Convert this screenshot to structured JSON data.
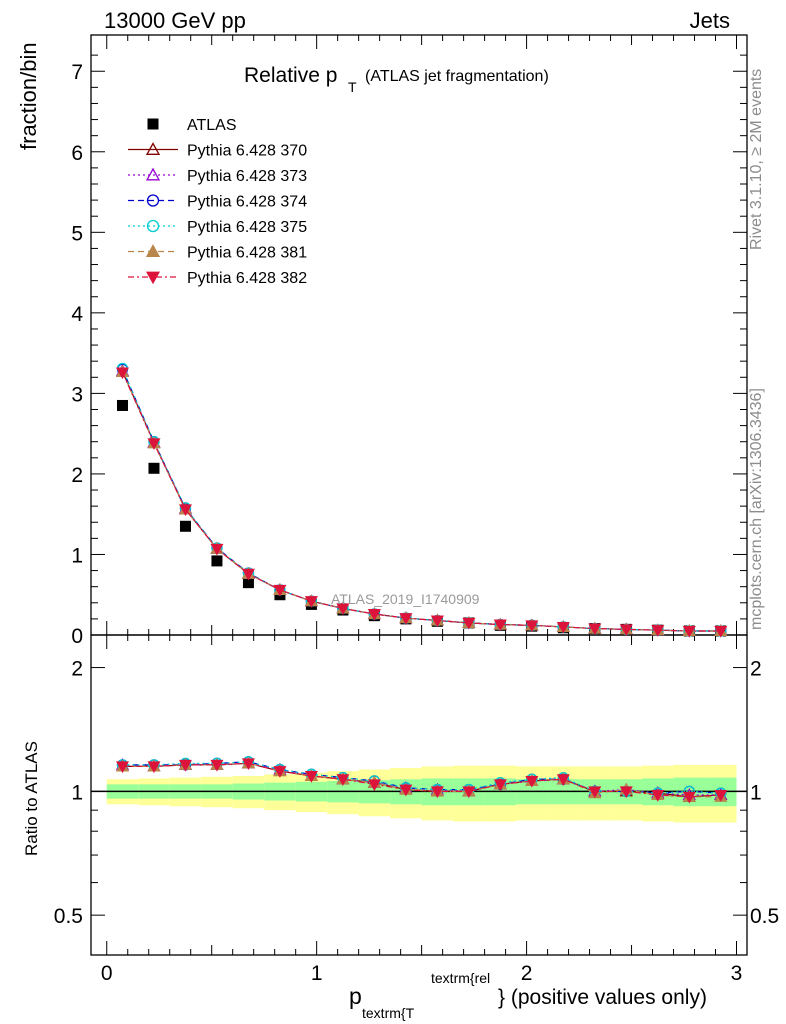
{
  "header": {
    "left_label": "13000 GeV pp",
    "right_label": "Jets"
  },
  "side_labels": {
    "rivet": "Rivet 3.1.10, ≥ 2M events",
    "site": "mcplots.cern.ch [arXiv:1306.3436]"
  },
  "chart_data": [
    {
      "type": "line",
      "panel": "main",
      "title_main": "Relative p",
      "title_sub": "T",
      "title_tail": "(ATLAS jet fragmentation)",
      "watermark": "ATLAS_2019_I1740909",
      "ylabel": "fraction/bin",
      "xlabel_main": "p",
      "xlabel_sub": "textrm{T",
      "xlabel_sup": "textrm{rel",
      "xlabel_tail": "} (positive values only)",
      "xlim": [
        -0.075,
        3.05
      ],
      "ylim": [
        0,
        7.45
      ],
      "x_ticks": [
        "0",
        "1",
        "2",
        "3"
      ],
      "y_ticks": [
        "0",
        "1",
        "2",
        "3",
        "4",
        "5",
        "6",
        "7"
      ],
      "x": [
        0.075,
        0.225,
        0.375,
        0.525,
        0.675,
        0.825,
        0.975,
        1.125,
        1.275,
        1.425,
        1.575,
        1.725,
        1.875,
        2.025,
        2.175,
        2.325,
        2.475,
        2.625,
        2.775,
        2.925
      ],
      "series": [
        {
          "name": "ATLAS",
          "marker": "square",
          "color": "#000000",
          "values": [
            2.85,
            2.07,
            1.35,
            0.92,
            0.65,
            0.5,
            0.38,
            0.31,
            0.24,
            0.2,
            0.17,
            0.15,
            0.12,
            0.11,
            0.09,
            0.08,
            0.07,
            0.06,
            0.05,
            0.05
          ]
        },
        {
          "name": "Pythia 6.428 370",
          "marker": "triangle-open",
          "color": "#800000",
          "dash": "",
          "values": [
            3.27,
            2.39,
            1.56,
            1.07,
            0.76,
            0.56,
            0.42,
            0.33,
            0.26,
            0.21,
            0.18,
            0.15,
            0.13,
            0.12,
            0.1,
            0.08,
            0.07,
            0.06,
            0.05,
            0.05
          ]
        },
        {
          "name": "Pythia 6.428 373",
          "marker": "triangle-open",
          "color": "#9400d3",
          "dash": "2,3",
          "values": [
            3.28,
            2.39,
            1.57,
            1.07,
            0.76,
            0.56,
            0.42,
            0.33,
            0.26,
            0.21,
            0.18,
            0.15,
            0.13,
            0.12,
            0.1,
            0.08,
            0.07,
            0.06,
            0.05,
            0.05
          ]
        },
        {
          "name": "Pythia 6.428 374",
          "marker": "circle-open",
          "color": "#0000cd",
          "dash": "6,4",
          "values": [
            3.3,
            2.4,
            1.57,
            1.08,
            0.77,
            0.56,
            0.42,
            0.33,
            0.26,
            0.21,
            0.18,
            0.15,
            0.13,
            0.12,
            0.1,
            0.08,
            0.07,
            0.06,
            0.05,
            0.05
          ]
        },
        {
          "name": "Pythia 6.428 375",
          "marker": "circle-open",
          "color": "#00ced1",
          "dash": "2,3",
          "values": [
            3.31,
            2.4,
            1.58,
            1.08,
            0.77,
            0.56,
            0.42,
            0.33,
            0.26,
            0.21,
            0.18,
            0.15,
            0.13,
            0.12,
            0.1,
            0.08,
            0.07,
            0.06,
            0.05,
            0.05
          ]
        },
        {
          "name": "Pythia 6.428 381",
          "marker": "triangle-filled",
          "color": "#b8864b",
          "dash": "6,4",
          "values": [
            3.27,
            2.38,
            1.56,
            1.07,
            0.76,
            0.56,
            0.42,
            0.33,
            0.26,
            0.21,
            0.18,
            0.15,
            0.13,
            0.12,
            0.1,
            0.08,
            0.07,
            0.06,
            0.05,
            0.05
          ]
        },
        {
          "name": "Pythia 6.428 382",
          "marker": "triangle-down-filled",
          "color": "#dc143c",
          "dash": "6,3,2,3",
          "values": [
            3.26,
            2.38,
            1.56,
            1.07,
            0.76,
            0.56,
            0.42,
            0.33,
            0.26,
            0.21,
            0.18,
            0.15,
            0.13,
            0.12,
            0.1,
            0.08,
            0.07,
            0.06,
            0.05,
            0.05
          ]
        }
      ]
    },
    {
      "type": "line",
      "panel": "ratio",
      "ylabel": "Ratio to ATLAS",
      "y_scale": "log",
      "ylim": [
        0.4,
        2.4
      ],
      "y_ticks": [
        "0.5",
        "1",
        "2"
      ],
      "band_colors": {
        "inner": "#99ff99",
        "outer": "#ffff99"
      },
      "band_inner_halfwidth": [
        0.04,
        0.04,
        0.04,
        0.04,
        0.045,
        0.05,
        0.055,
        0.06,
        0.065,
        0.07,
        0.075,
        0.075,
        0.075,
        0.07,
        0.07,
        0.07,
        0.07,
        0.075,
        0.08,
        0.08
      ],
      "band_outer_halfwidth": [
        0.07,
        0.075,
        0.08,
        0.085,
        0.09,
        0.1,
        0.11,
        0.12,
        0.13,
        0.14,
        0.15,
        0.155,
        0.155,
        0.15,
        0.15,
        0.15,
        0.15,
        0.155,
        0.16,
        0.16
      ],
      "series": [
        {
          "name": "Pythia 6.428 370",
          "values": [
            1.15,
            1.15,
            1.16,
            1.16,
            1.17,
            1.12,
            1.09,
            1.07,
            1.05,
            1.01,
            1.0,
            1.0,
            1.04,
            1.06,
            1.07,
            1.0,
            1.0,
            0.99,
            0.97,
            0.98
          ]
        },
        {
          "name": "Pythia 6.428 373",
          "values": [
            1.16,
            1.15,
            1.16,
            1.16,
            1.17,
            1.13,
            1.09,
            1.07,
            1.05,
            1.02,
            1.01,
            1.0,
            1.04,
            1.06,
            1.07,
            1.0,
            1.01,
            0.99,
            0.98,
            0.98
          ]
        },
        {
          "name": "Pythia 6.428 374",
          "values": [
            1.16,
            1.16,
            1.16,
            1.17,
            1.18,
            1.13,
            1.1,
            1.08,
            1.06,
            1.02,
            1.01,
            1.01,
            1.04,
            1.07,
            1.07,
            1.0,
            1.0,
            0.99,
            1.0,
            0.99
          ]
        },
        {
          "name": "Pythia 6.428 375",
          "values": [
            1.16,
            1.16,
            1.17,
            1.17,
            1.18,
            1.13,
            1.1,
            1.08,
            1.06,
            1.02,
            1.01,
            1.01,
            1.05,
            1.07,
            1.08,
            1.0,
            1.0,
            0.99,
            1.0,
            0.99
          ]
        },
        {
          "name": "Pythia 6.428 381",
          "values": [
            1.15,
            1.15,
            1.16,
            1.16,
            1.17,
            1.12,
            1.09,
            1.07,
            1.05,
            1.01,
            1.0,
            1.0,
            1.04,
            1.06,
            1.07,
            0.99,
            1.01,
            0.98,
            0.97,
            0.97
          ]
        },
        {
          "name": "Pythia 6.428 382",
          "values": [
            1.15,
            1.15,
            1.16,
            1.16,
            1.17,
            1.12,
            1.09,
            1.07,
            1.04,
            1.01,
            1.0,
            1.0,
            1.04,
            1.06,
            1.07,
            1.0,
            1.0,
            0.98,
            0.97,
            0.98
          ]
        }
      ]
    }
  ]
}
